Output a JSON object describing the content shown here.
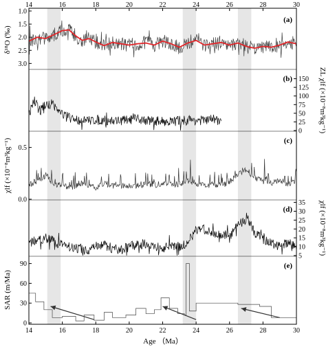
{
  "figure": {
    "x_axis_title": "Age （Ma）",
    "x_ticks": [
      14,
      16,
      18,
      20,
      22,
      24,
      26,
      28,
      30
    ],
    "shaded_intervals": [
      [
        15.1,
        15.9
      ],
      [
        23.2,
        24.0
      ],
      [
        26.5,
        27.3
      ]
    ]
  },
  "chart_data": [
    {
      "panel_label": "(a)",
      "type": "line",
      "ylabel_left": "δ¹⁸O (‰)",
      "ylim": [
        1.0,
        3.2
      ],
      "y_reversed": true,
      "yticks": [
        "1.0",
        "1.5",
        "2.0",
        "2.5",
        "3.0"
      ],
      "ytick_values": [
        1.0,
        1.5,
        2.0,
        2.5,
        3.0
      ],
      "series": [
        {
          "style": "noisy",
          "color": "#404040",
          "x": [
            14.0,
            14.5,
            15.0,
            15.5,
            16.0,
            16.4,
            16.8,
            17.2,
            17.6,
            18.0,
            18.5,
            19.0,
            19.5,
            20.0,
            20.5,
            21.0,
            21.5,
            22.0,
            22.5,
            23.0,
            23.5,
            24.0,
            24.5,
            25.0,
            25.5,
            26.0,
            26.5,
            27.0,
            27.5,
            28.0,
            28.5,
            29.0,
            29.5,
            30.0
          ],
          "y": [
            2.15,
            2.0,
            2.05,
            1.9,
            1.75,
            1.7,
            1.95,
            2.15,
            2.05,
            2.2,
            2.35,
            2.2,
            2.25,
            2.3,
            2.25,
            2.2,
            2.3,
            2.15,
            2.25,
            2.4,
            2.2,
            2.1,
            2.3,
            2.25,
            2.2,
            2.3,
            2.2,
            2.35,
            2.45,
            2.35,
            2.4,
            2.3,
            2.15,
            2.25
          ]
        },
        {
          "style": "smooth",
          "color": "#e3262a",
          "x": [
            14.0,
            14.5,
            15.0,
            15.5,
            16.0,
            16.4,
            16.8,
            17.2,
            17.6,
            18.0,
            18.5,
            19.0,
            19.5,
            20.0,
            20.5,
            21.0,
            21.5,
            22.0,
            22.5,
            23.0,
            23.5,
            24.0,
            24.5,
            25.0,
            25.5,
            26.0,
            26.5,
            27.0,
            27.5,
            28.0,
            28.5,
            29.0,
            29.5,
            30.0
          ],
          "y": [
            2.15,
            2.0,
            2.05,
            1.9,
            1.75,
            1.72,
            1.95,
            2.12,
            2.05,
            2.18,
            2.32,
            2.2,
            2.25,
            2.3,
            2.25,
            2.22,
            2.3,
            2.15,
            2.25,
            2.38,
            2.22,
            2.12,
            2.3,
            2.25,
            2.2,
            2.3,
            2.22,
            2.35,
            2.42,
            2.35,
            2.38,
            2.3,
            2.18,
            2.25
          ]
        }
      ]
    },
    {
      "panel_label": "(b)",
      "type": "line",
      "ylabel_right": "ZL χlf (×10⁻⁸m³kg⁻¹)",
      "ylim": [
        0,
        175
      ],
      "yticks": [
        "0",
        "25",
        "50",
        "75",
        "100",
        "125",
        "150"
      ],
      "ytick_values": [
        0,
        25,
        50,
        75,
        100,
        125,
        150
      ],
      "series": [
        {
          "style": "noisy",
          "color": "#000000",
          "x": [
            14.0,
            14.3,
            14.6,
            15.0,
            15.4,
            15.8,
            16.0,
            16.5,
            17.0,
            17.5,
            18.0,
            18.5,
            19.0,
            19.5,
            20.0,
            20.5,
            21.0,
            21.5,
            22.0,
            22.5,
            23.0,
            23.5,
            24.0,
            24.5,
            25.0,
            25.5
          ],
          "y": [
            45,
            90,
            60,
            70,
            80,
            55,
            48,
            35,
            30,
            28,
            32,
            30,
            28,
            29,
            31,
            33,
            30,
            28,
            27,
            26,
            29,
            31,
            30,
            29,
            33,
            28
          ]
        }
      ]
    },
    {
      "panel_label": "(c)",
      "type": "line",
      "ylabel_left": "χlf (×10⁻⁸m³kg⁻¹)",
      "ylim": [
        0.0,
        0.65
      ],
      "yticks": [
        "0.0",
        "0.5"
      ],
      "ytick_values": [
        0.0,
        0.5
      ],
      "series": [
        {
          "style": "noisy",
          "color": "#333333",
          "x": [
            14.0,
            14.5,
            15.0,
            15.5,
            16.0,
            16.5,
            17.0,
            17.5,
            18.0,
            18.5,
            19.0,
            19.5,
            20.0,
            20.5,
            21.0,
            21.5,
            22.0,
            22.5,
            23.0,
            23.5,
            24.0,
            24.5,
            25.0,
            25.5,
            26.0,
            26.5,
            27.0,
            27.5,
            28.0,
            28.5,
            29.0,
            29.5,
            30.0
          ],
          "y": [
            0.1,
            0.15,
            0.2,
            0.12,
            0.1,
            0.08,
            0.12,
            0.1,
            0.08,
            0.12,
            0.1,
            0.09,
            0.11,
            0.1,
            0.12,
            0.1,
            0.13,
            0.11,
            0.12,
            0.15,
            0.12,
            0.1,
            0.11,
            0.1,
            0.14,
            0.2,
            0.25,
            0.18,
            0.14,
            0.12,
            0.15,
            0.12,
            0.14
          ]
        }
      ]
    },
    {
      "panel_label": "(d)",
      "type": "line",
      "ylabel_right": "χlf (×10⁻⁸m³kg⁻¹)",
      "ylim": [
        5,
        36
      ],
      "yticks": [
        "5",
        "10",
        "15",
        "20",
        "25",
        "30",
        "35"
      ],
      "ytick_values": [
        5,
        10,
        15,
        20,
        25,
        30,
        35
      ],
      "series": [
        {
          "style": "noisy",
          "color": "#000000",
          "x": [
            14.0,
            14.5,
            15.0,
            15.5,
            16.0,
            16.5,
            17.0,
            17.5,
            18.0,
            18.5,
            19.0,
            19.5,
            20.0,
            20.5,
            21.0,
            21.5,
            22.0,
            22.5,
            23.0,
            23.5,
            24.0,
            24.5,
            25.0,
            25.5,
            26.0,
            26.5,
            27.0,
            27.5,
            28.0,
            28.5,
            29.0,
            29.5,
            30.0
          ],
          "y": [
            12,
            14,
            15,
            13,
            11,
            10,
            9,
            8,
            10,
            11,
            9,
            8,
            10,
            11,
            12,
            10,
            9,
            11,
            10,
            12,
            20,
            19,
            18,
            17,
            16,
            22,
            26,
            18,
            14,
            12,
            11,
            12,
            10
          ]
        }
      ]
    },
    {
      "panel_label": "(e)",
      "type": "line",
      "ylabel_left": "SAR (m/Ma)",
      "ylim": [
        0,
        100
      ],
      "yticks": [
        "0",
        "30",
        "60",
        "90"
      ],
      "ytick_values": [
        0,
        30,
        60,
        90
      ],
      "series": [
        {
          "style": "step",
          "color": "#444444",
          "x": [
            14.0,
            14.4,
            14.9,
            15.4,
            16.0,
            16.8,
            17.3,
            17.9,
            18.5,
            19.0,
            19.8,
            20.4,
            21.0,
            21.5,
            21.9,
            22.4,
            22.9,
            23.3,
            23.4,
            23.6,
            24.0,
            26.5,
            27.8,
            28.5,
            30.0
          ],
          "y": [
            45,
            32,
            20,
            8,
            10,
            3,
            12,
            4,
            16,
            8,
            12,
            22,
            14,
            20,
            38,
            22,
            14,
            12,
            90,
            18,
            30,
            28,
            25,
            8,
            8
          ]
        }
      ],
      "arrows": [
        {
          "from": [
            17.9,
            5
          ],
          "to": [
            15.3,
            25
          ]
        },
        {
          "from": [
            24.0,
            5
          ],
          "to": [
            22.0,
            25
          ]
        },
        {
          "from": [
            29.0,
            8
          ],
          "to": [
            26.7,
            22
          ]
        }
      ]
    }
  ]
}
